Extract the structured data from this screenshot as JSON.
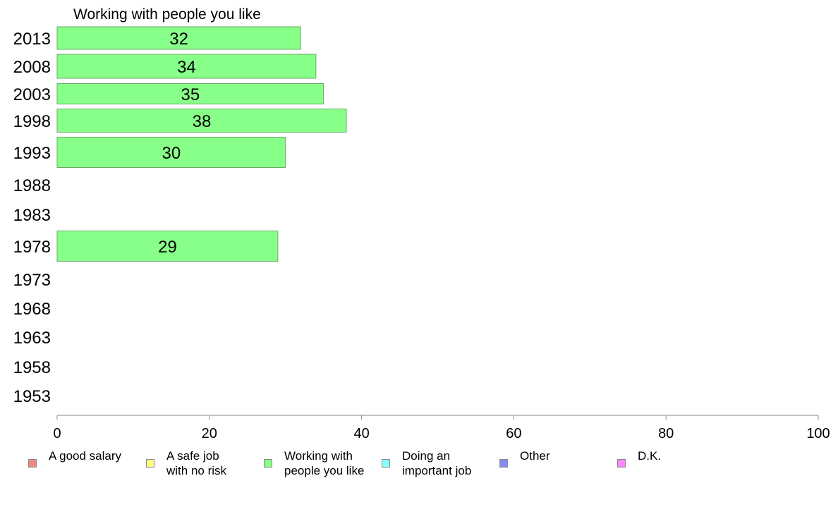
{
  "chart_data": {
    "type": "bar",
    "orientation": "horizontal",
    "title": "Working with people you like",
    "categories": [
      "2013",
      "2008",
      "2003",
      "1998",
      "1993",
      "1988",
      "1983",
      "1978",
      "1973",
      "1968",
      "1963",
      "1958",
      "1953"
    ],
    "series": [
      {
        "name": "Working with people you like",
        "values": [
          32,
          34,
          35,
          38,
          30,
          null,
          null,
          29,
          null,
          null,
          null,
          null,
          null
        ]
      }
    ],
    "data_labels": [
      "32",
      "34",
      "35",
      "38",
      "30",
      "",
      "",
      "29",
      "",
      "",
      "",
      "",
      ""
    ],
    "xlim": [
      0,
      100
    ],
    "x_ticks": [
      "0",
      "20",
      "40",
      "60",
      "80",
      "100"
    ],
    "bar_color": "#88ff88",
    "grid": false,
    "legend": {
      "placement": "bottom",
      "items": [
        {
          "label": "A good salary",
          "color": "#f08888"
        },
        {
          "label": "A safe job\nwith no risk",
          "color": "#ffff88"
        },
        {
          "label": "Working with\npeople you like",
          "color": "#88ff88"
        },
        {
          "label": "Doing an\nimportant job",
          "color": "#88ffff"
        },
        {
          "label": "Other",
          "color": "#8888f0"
        },
        {
          "label": "D.K.",
          "color": "#ff88ff"
        }
      ]
    }
  }
}
